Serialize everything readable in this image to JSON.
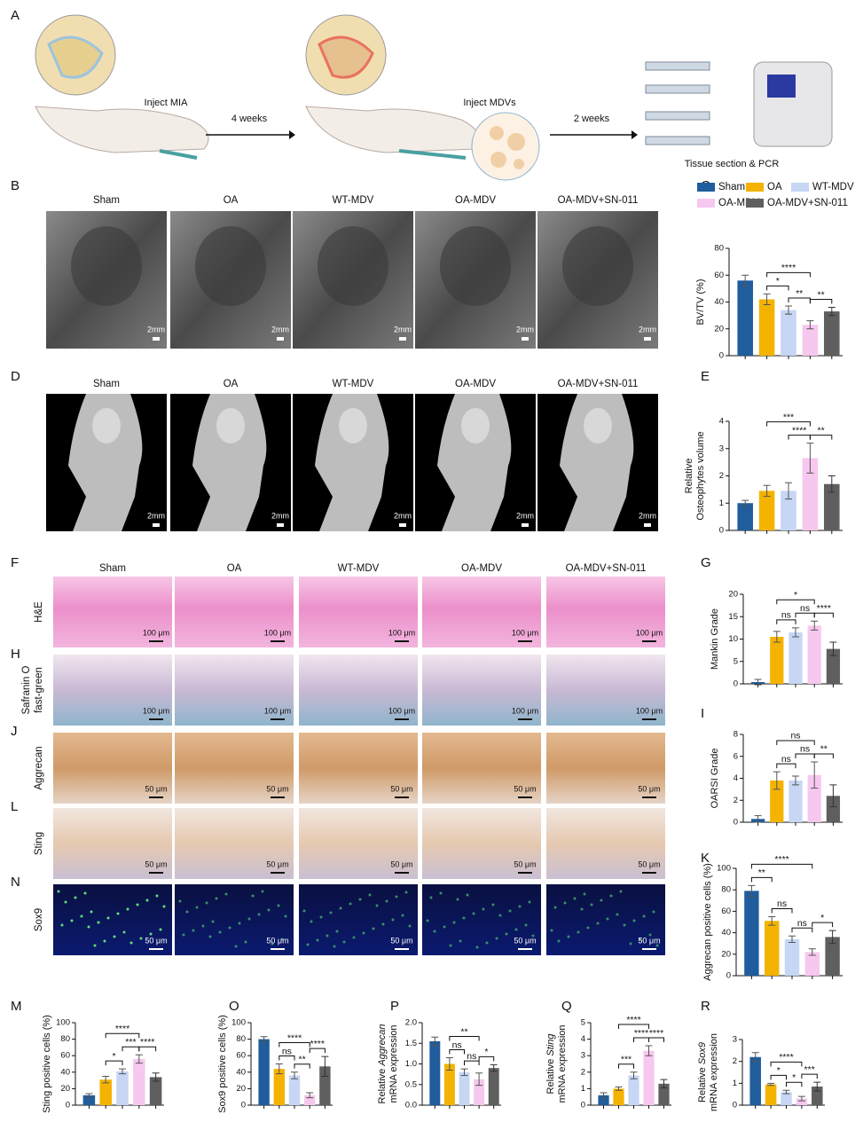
{
  "panel_labels": [
    "A",
    "B",
    "C",
    "D",
    "E",
    "F",
    "G",
    "H",
    "I",
    "J",
    "K",
    "L",
    "M",
    "N",
    "O",
    "P",
    "Q",
    "R"
  ],
  "schematic": {
    "step1": "Inject MIA",
    "interval1": "4 weeks",
    "step2": "Inject MDVs",
    "interval2": "2 weeks",
    "step3": "Tissue section & PCR"
  },
  "groups": [
    {
      "name": "Sham",
      "color": "#1f5d9c"
    },
    {
      "name": "OA",
      "color": "#f4b300"
    },
    {
      "name": "WT-MDV",
      "color": "#c6d6f4"
    },
    {
      "name": "OA-MDV",
      "color": "#f6c8ef"
    },
    {
      "name": "OA-MDV+SN-011",
      "color": "#5f5f5f"
    }
  ],
  "xray": {
    "scale": "2mm"
  },
  "ct": {
    "scale": "2mm"
  },
  "histology_rows": [
    {
      "label": [
        "H&E"
      ],
      "scale": "100 μm"
    },
    {
      "label": [
        "Safranin O",
        "fast-green"
      ],
      "scale": "100 μm"
    },
    {
      "label": [
        "Aggrecan"
      ],
      "scale": "50 μm"
    },
    {
      "label": [
        "Sting"
      ],
      "scale": "50 μm"
    },
    {
      "label": [
        "Sox9"
      ],
      "scale": "50 μm"
    }
  ],
  "chart_data": [
    {
      "type": "bar",
      "ylabel": [
        [
          "BV/TV (%)"
        ]
      ],
      "categories": [
        null,
        null,
        null,
        null,
        null
      ],
      "values": [
        56,
        42,
        34,
        23,
        33
      ],
      "errors": [
        4,
        4,
        3,
        3,
        3
      ],
      "ylim": [
        0,
        80
      ],
      "yticks": [
        0,
        20,
        40,
        60,
        80
      ],
      "comparisons": [
        {
          "between": [
            1,
            2
          ],
          "label": "*"
        },
        {
          "between": [
            2,
            3
          ],
          "label": "**"
        },
        {
          "between": [
            3,
            4
          ],
          "label": "**"
        },
        {
          "between": [
            1,
            3
          ],
          "label": "****"
        }
      ]
    },
    {
      "type": "bar",
      "ylabel": [
        [
          "Relative"
        ],
        [
          "Osteophytes volume"
        ]
      ],
      "categories": [
        null,
        null,
        null,
        null,
        null
      ],
      "values": [
        1.0,
        1.45,
        1.45,
        2.65,
        1.7
      ],
      "errors": [
        0.1,
        0.2,
        0.3,
        0.55,
        0.3
      ],
      "ylim": [
        0,
        4
      ],
      "yticks": [
        0,
        1,
        2,
        3,
        4
      ],
      "comparisons": [
        {
          "between": [
            2,
            3
          ],
          "label": "****"
        },
        {
          "between": [
            3,
            4
          ],
          "label": "**"
        },
        {
          "between": [
            1,
            3
          ],
          "label": "***"
        }
      ]
    },
    {
      "type": "bar",
      "ylabel": [
        [
          "Mankin Grade"
        ]
      ],
      "categories": [
        null,
        null,
        null,
        null,
        null
      ],
      "values": [
        0.4,
        10.5,
        11.5,
        13,
        7.8
      ],
      "errors": [
        0.6,
        1.2,
        1,
        1,
        1.5
      ],
      "ylim": [
        0,
        20
      ],
      "yticks": [
        0,
        5,
        10,
        15,
        20
      ],
      "comparisons": [
        {
          "between": [
            1,
            2
          ],
          "label": "ns"
        },
        {
          "between": [
            2,
            3
          ],
          "label": "ns"
        },
        {
          "between": [
            3,
            4
          ],
          "label": "****"
        },
        {
          "between": [
            1,
            3
          ],
          "label": "*"
        }
      ]
    },
    {
      "type": "bar",
      "ylabel": [
        [
          "OARSI Grade"
        ]
      ],
      "categories": [
        null,
        null,
        null,
        null,
        null
      ],
      "values": [
        0.3,
        3.8,
        3.8,
        4.3,
        2.4
      ],
      "errors": [
        0.3,
        0.8,
        0.4,
        1.2,
        1
      ],
      "ylim": [
        0,
        8
      ],
      "yticks": [
        0,
        2,
        4,
        6,
        8
      ],
      "comparisons": [
        {
          "between": [
            1,
            2
          ],
          "label": "ns"
        },
        {
          "between": [
            2,
            3
          ],
          "label": "ns"
        },
        {
          "between": [
            3,
            4
          ],
          "label": "**"
        },
        {
          "between": [
            1,
            3
          ],
          "label": "ns"
        }
      ]
    },
    {
      "type": "bar",
      "ylabel": [
        [
          "Aggrecan positive cells (%)"
        ]
      ],
      "categories": [
        null,
        null,
        null,
        null,
        null
      ],
      "values": [
        79,
        51,
        34,
        22,
        36
      ],
      "errors": [
        5,
        4,
        3,
        3,
        6
      ],
      "ylim": [
        0,
        100
      ],
      "yticks": [
        0,
        20,
        40,
        60,
        80,
        100
      ],
      "comparisons": [
        {
          "between": [
            0,
            1
          ],
          "label": "**"
        },
        {
          "between": [
            1,
            2
          ],
          "label": "ns"
        },
        {
          "between": [
            2,
            3
          ],
          "label": "ns"
        },
        {
          "between": [
            3,
            4
          ],
          "label": "*"
        },
        {
          "between": [
            0,
            3
          ],
          "label": "****"
        }
      ]
    },
    {
      "type": "bar",
      "ylabel": [
        [
          "Sting positive cells (%)"
        ]
      ],
      "categories": [
        null,
        null,
        null,
        null,
        null
      ],
      "values": [
        12,
        31,
        41,
        56,
        34
      ],
      "errors": [
        2,
        4,
        3,
        5,
        5
      ],
      "ylim": [
        0,
        100
      ],
      "yticks": [
        0,
        20,
        40,
        60,
        80,
        100
      ],
      "comparisons": [
        {
          "between": [
            1,
            2
          ],
          "label": "*"
        },
        {
          "between": [
            2,
            3
          ],
          "label": "***"
        },
        {
          "between": [
            3,
            4
          ],
          "label": "****"
        },
        {
          "between": [
            1,
            3
          ],
          "label": "****"
        }
      ]
    },
    {
      "type": "bar",
      "ylabel": [
        [
          "Sox9 positive cells (%)"
        ]
      ],
      "categories": [
        null,
        null,
        null,
        null,
        null
      ],
      "values": [
        80,
        44,
        36,
        12,
        47
      ],
      "errors": [
        3,
        6,
        4,
        3,
        12
      ],
      "ylim": [
        0,
        100
      ],
      "yticks": [
        0,
        20,
        40,
        60,
        80,
        100
      ],
      "comparisons": [
        {
          "between": [
            1,
            2
          ],
          "label": "ns"
        },
        {
          "between": [
            2,
            3
          ],
          "label": "**"
        },
        {
          "between": [
            3,
            4
          ],
          "label": "****"
        },
        {
          "between": [
            1,
            3
          ],
          "label": "****"
        }
      ]
    },
    {
      "type": "bar",
      "ylabel": [
        [
          "Relative ",
          {
            "text": "Aggrecan",
            "italic": true
          }
        ],
        [
          "mRNA expression"
        ]
      ],
      "categories": [
        null,
        null,
        null,
        null,
        null
      ],
      "values": [
        1.55,
        1.0,
        0.8,
        0.63,
        0.9
      ],
      "errors": [
        0.1,
        0.15,
        0.08,
        0.15,
        0.08
      ],
      "ylim": [
        0,
        2.0
      ],
      "yticks": [
        {
          "value": 0,
          "label": "0.0"
        },
        0.5,
        {
          "value": 1,
          "label": "1.0"
        },
        1.5,
        {
          "value": 2,
          "label": "2.0"
        }
      ],
      "comparisons": [
        {
          "between": [
            1,
            2
          ],
          "label": "ns"
        },
        {
          "between": [
            2,
            3
          ],
          "label": "ns"
        },
        {
          "between": [
            3,
            4
          ],
          "label": "*"
        },
        {
          "between": [
            1,
            3
          ],
          "label": "**"
        }
      ]
    },
    {
      "type": "bar",
      "ylabel": [
        [
          "Relative ",
          {
            "text": "Sting",
            "italic": true
          }
        ],
        [
          "mRNA expression"
        ]
      ],
      "categories": [
        null,
        null,
        null,
        null,
        null
      ],
      "values": [
        0.6,
        1.0,
        1.8,
        3.3,
        1.3
      ],
      "errors": [
        0.15,
        0.1,
        0.2,
        0.3,
        0.25
      ],
      "ylim": [
        0,
        5
      ],
      "yticks": [
        0,
        1,
        2,
        3,
        4,
        5
      ],
      "comparisons": [
        {
          "between": [
            1,
            2
          ],
          "label": "***"
        },
        {
          "between": [
            2,
            3
          ],
          "label": "****"
        },
        {
          "between": [
            3,
            4
          ],
          "label": "****"
        },
        {
          "between": [
            1,
            3
          ],
          "label": "****"
        }
      ]
    },
    {
      "type": "bar",
      "ylabel": [
        [
          "Relative ",
          {
            "text": "Sox9",
            "italic": true
          }
        ],
        [
          "mRNA expression"
        ]
      ],
      "categories": [
        null,
        null,
        null,
        null,
        null
      ],
      "values": [
        2.2,
        0.95,
        0.6,
        0.3,
        0.85
      ],
      "errors": [
        0.2,
        0.05,
        0.08,
        0.1,
        0.2
      ],
      "ylim": [
        0,
        3
      ],
      "yticks": [
        0,
        1,
        2,
        3
      ],
      "comparisons": [
        {
          "between": [
            1,
            2
          ],
          "label": "*"
        },
        {
          "between": [
            2,
            3
          ],
          "label": "*"
        },
        {
          "between": [
            3,
            4
          ],
          "label": "***"
        },
        {
          "between": [
            1,
            3
          ],
          "label": "****"
        }
      ]
    }
  ]
}
